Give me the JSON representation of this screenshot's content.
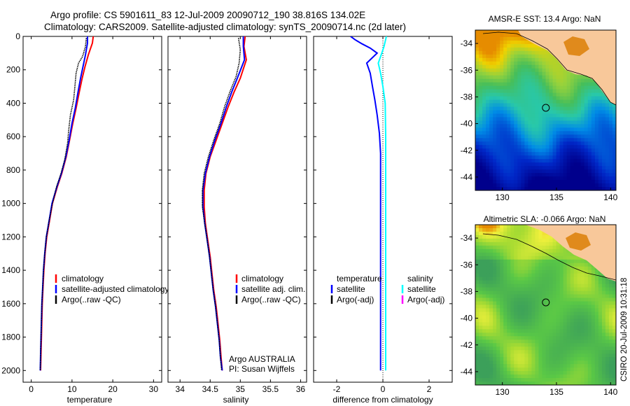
{
  "header": {
    "line1": "Argo profile: CS 5901611_83 12-Jul-2009 20090712_190 38.816S 134.02E",
    "line2": "Climatology: CARS2009. Satellite-adjusted climatology: synTS_20090714.nc (2d later)"
  },
  "colors": {
    "climatology": "#ff0000",
    "satellite": "#0000ff",
    "argo": "#000000",
    "salinity_satellite": "#00ffff",
    "salinity_argo": "#ff00ff",
    "land": "#f8c89a"
  },
  "depth_axis": {
    "ticks": [
      0,
      200,
      400,
      600,
      800,
      1000,
      1200,
      1400,
      1600,
      1800,
      2000
    ],
    "ylim": [
      0,
      2070
    ]
  },
  "chart_data": [
    {
      "type": "line",
      "xlabel": "temperature",
      "ylabel": "",
      "xlim": [
        -2,
        32
      ],
      "xticks": [
        0,
        10,
        20,
        30
      ],
      "ylim": [
        0,
        2070
      ],
      "yticks": [
        0,
        200,
        400,
        600,
        800,
        1000,
        1200,
        1400,
        1600,
        1800,
        2000
      ],
      "legend": {
        "position": "lower-right",
        "entries": [
          "climatology",
          "satellite-adjusted climatology",
          "Argo(..raw -QC)"
        ]
      },
      "series": [
        {
          "name": "climatology",
          "color": "#ff0000",
          "points": [
            [
              15.2,
              0
            ],
            [
              15,
              40
            ],
            [
              14,
              110
            ],
            [
              13.2,
              180
            ],
            [
              12.5,
              250
            ],
            [
              11.8,
              330
            ],
            [
              11,
              430
            ],
            [
              10.2,
              520
            ],
            [
              9.4,
              620
            ],
            [
              8.6,
              720
            ],
            [
              7.5,
              820
            ],
            [
              6.4,
              900
            ],
            [
              5.2,
              1000
            ],
            [
              4.5,
              1100
            ],
            [
              3.8,
              1200
            ],
            [
              3.4,
              1300
            ],
            [
              3.1,
              1400
            ],
            [
              2.9,
              1500
            ],
            [
              2.7,
              1600
            ],
            [
              2.6,
              1700
            ],
            [
              2.5,
              1800
            ],
            [
              2.4,
              1900
            ],
            [
              2.3,
              2000
            ]
          ]
        },
        {
          "name": "satellite-adjusted climatology",
          "color": "#0000ff",
          "points": [
            [
              13.8,
              0
            ],
            [
              13.8,
              40
            ],
            [
              13.3,
              110
            ],
            [
              12.7,
              180
            ],
            [
              12.1,
              250
            ],
            [
              11.5,
              330
            ],
            [
              10.8,
              430
            ],
            [
              10,
              520
            ],
            [
              9.3,
              620
            ],
            [
              8.5,
              720
            ],
            [
              7.4,
              820
            ],
            [
              6.3,
              900
            ],
            [
              5.1,
              1000
            ],
            [
              4.4,
              1100
            ],
            [
              3.7,
              1200
            ],
            [
              3.3,
              1300
            ],
            [
              3.0,
              1400
            ],
            [
              2.8,
              1500
            ],
            [
              2.6,
              1600
            ],
            [
              2.5,
              1700
            ],
            [
              2.4,
              1800
            ],
            [
              2.3,
              1900
            ],
            [
              2.2,
              2000
            ]
          ]
        },
        {
          "name": "Argo(..raw -QC)",
          "color": "#000000",
          "points": [
            [
              13.5,
              10
            ],
            [
              13.3,
              60
            ],
            [
              12.6,
              120
            ],
            [
              11.6,
              160
            ],
            [
              11,
              220
            ],
            [
              10.7,
              300
            ],
            [
              10.4,
              380
            ],
            [
              9.6,
              470
            ],
            [
              9.2,
              560
            ],
            [
              8.9,
              640
            ],
            [
              8.2,
              740
            ],
            [
              7.3,
              820
            ],
            [
              6.2,
              900
            ],
            [
              5.2,
              1000
            ],
            [
              4.4,
              1100
            ],
            [
              3.7,
              1200
            ],
            [
              3.3,
              1300
            ],
            [
              3.0,
              1400
            ],
            [
              2.8,
              1500
            ],
            [
              2.6,
              1600
            ],
            [
              2.5,
              1700
            ],
            [
              2.4,
              1800
            ],
            [
              2.3,
              1900
            ],
            [
              2.2,
              2000
            ]
          ]
        }
      ]
    },
    {
      "type": "line",
      "xlabel": "salinity",
      "ylabel": "",
      "xlim": [
        33.8,
        36.1
      ],
      "xticks": [
        34,
        34.5,
        35,
        35.5,
        36
      ],
      "ylim": [
        0,
        2070
      ],
      "legend": {
        "position": "lower-right",
        "entries": [
          "climatology",
          "satellite adj. clim.",
          "Argo(..raw -QC)"
        ]
      },
      "annotation": [
        "Argo AUSTRALIA",
        "PI: Susan Wijffels"
      ],
      "series": [
        {
          "name": "climatology",
          "color": "#ff0000",
          "points": [
            [
              35.08,
              0
            ],
            [
              35.06,
              60
            ],
            [
              35.1,
              140
            ],
            [
              35.0,
              250
            ],
            [
              34.9,
              330
            ],
            [
              34.8,
              420
            ],
            [
              34.7,
              520
            ],
            [
              34.6,
              620
            ],
            [
              34.5,
              720
            ],
            [
              34.43,
              820
            ],
            [
              34.4,
              920
            ],
            [
              34.4,
              1020
            ],
            [
              34.42,
              1120
            ],
            [
              34.46,
              1220
            ],
            [
              34.5,
              1320
            ],
            [
              34.53,
              1420
            ],
            [
              34.56,
              1520
            ],
            [
              34.6,
              1620
            ],
            [
              34.63,
              1720
            ],
            [
              34.66,
              1820
            ],
            [
              34.68,
              1920
            ],
            [
              34.7,
              2000
            ]
          ]
        },
        {
          "name": "satellite adj. clim.",
          "color": "#0000ff",
          "points": [
            [
              35.05,
              0
            ],
            [
              35.05,
              60
            ],
            [
              35.07,
              140
            ],
            [
              34.95,
              250
            ],
            [
              34.86,
              330
            ],
            [
              34.77,
              420
            ],
            [
              34.68,
              520
            ],
            [
              34.58,
              620
            ],
            [
              34.49,
              720
            ],
            [
              34.42,
              820
            ],
            [
              34.38,
              920
            ],
            [
              34.38,
              1020
            ],
            [
              34.41,
              1120
            ],
            [
              34.45,
              1220
            ],
            [
              34.49,
              1320
            ],
            [
              34.52,
              1420
            ],
            [
              34.55,
              1520
            ],
            [
              34.59,
              1620
            ],
            [
              34.62,
              1720
            ],
            [
              34.65,
              1820
            ],
            [
              34.67,
              1920
            ],
            [
              34.7,
              2000
            ]
          ]
        },
        {
          "name": "Argo(..raw -QC)",
          "color": "#000000",
          "points": [
            [
              34.97,
              10
            ],
            [
              35.0,
              80
            ],
            [
              34.98,
              160
            ],
            [
              34.93,
              240
            ],
            [
              34.84,
              320
            ],
            [
              34.74,
              420
            ],
            [
              34.66,
              520
            ],
            [
              34.56,
              620
            ],
            [
              34.47,
              720
            ],
            [
              34.4,
              820
            ],
            [
              34.37,
              920
            ],
            [
              34.37,
              1020
            ],
            [
              34.41,
              1120
            ],
            [
              34.45,
              1220
            ],
            [
              34.49,
              1320
            ],
            [
              34.52,
              1420
            ],
            [
              34.55,
              1520
            ],
            [
              34.59,
              1620
            ],
            [
              34.62,
              1720
            ],
            [
              34.65,
              1820
            ],
            [
              34.67,
              1920
            ],
            [
              34.69,
              2000
            ]
          ]
        }
      ]
    },
    {
      "type": "line",
      "xlabel": "difference from climatology",
      "ylabel": "",
      "xlim": [
        -3,
        3
      ],
      "xticks": [
        -2,
        0,
        2
      ],
      "ylim": [
        0,
        2070
      ],
      "legend": {
        "position": "lower",
        "groups": [
          {
            "title": "temperature",
            "entries": [
              "satellite",
              "Argo(-adj)"
            ]
          },
          {
            "title": "salinity",
            "entries": [
              "satellite",
              "Argo(-adj)"
            ]
          }
        ]
      },
      "series": [
        {
          "name": "temperature satellite",
          "color": "#0000ff",
          "points": [
            [
              -1.4,
              0
            ],
            [
              -1.2,
              20
            ],
            [
              -0.9,
              45
            ],
            [
              -0.55,
              70
            ],
            [
              -0.25,
              100
            ],
            [
              -0.7,
              160
            ],
            [
              -0.55,
              220
            ],
            [
              -0.45,
              300
            ],
            [
              -0.35,
              380
            ],
            [
              -0.25,
              470
            ],
            [
              -0.15,
              580
            ],
            [
              -0.1,
              700
            ],
            [
              -0.1,
              850
            ],
            [
              -0.1,
              1000
            ],
            [
              -0.1,
              1200
            ],
            [
              -0.1,
              1400
            ],
            [
              -0.1,
              1600
            ],
            [
              -0.1,
              1800
            ],
            [
              -0.1,
              2000
            ]
          ]
        },
        {
          "name": "salinity satellite",
          "color": "#00ffff",
          "points": [
            [
              0.15,
              0
            ],
            [
              0.1,
              30
            ],
            [
              0.05,
              60
            ],
            [
              -0.05,
              100
            ],
            [
              -0.2,
              160
            ],
            [
              -0.1,
              220
            ],
            [
              0,
              300
            ],
            [
              0.1,
              400
            ],
            [
              0.12,
              600
            ],
            [
              0.12,
              800
            ],
            [
              0.12,
              1000
            ],
            [
              0.12,
              1200
            ],
            [
              0.12,
              1400
            ],
            [
              0.12,
              1600
            ],
            [
              0.12,
              1800
            ],
            [
              0.12,
              2000
            ]
          ]
        }
      ]
    },
    {
      "type": "heatmap",
      "title": "AMSR-E SST: 13.4 Argo: NaN",
      "xlim": [
        127.5,
        140.5
      ],
      "xticks": [
        130,
        135,
        140
      ],
      "ylim": [
        -45,
        -33
      ],
      "yticks": [
        -34,
        -36,
        -38,
        -40,
        -42,
        -44
      ],
      "argo_position": [
        134.02,
        -38.816
      ]
    },
    {
      "type": "heatmap",
      "title": "Altimetric SLA: -0.066 Argo: NaN",
      "xlim": [
        127.5,
        140.5
      ],
      "xticks": [
        130,
        135,
        140
      ],
      "ylim": [
        -45,
        -33
      ],
      "yticks": [
        -34,
        -36,
        -38,
        -40,
        -42,
        -44
      ],
      "argo_position": [
        134.02,
        -38.816
      ]
    }
  ],
  "side_label": "CSIRO 20-Jul-2009 10:31:18"
}
